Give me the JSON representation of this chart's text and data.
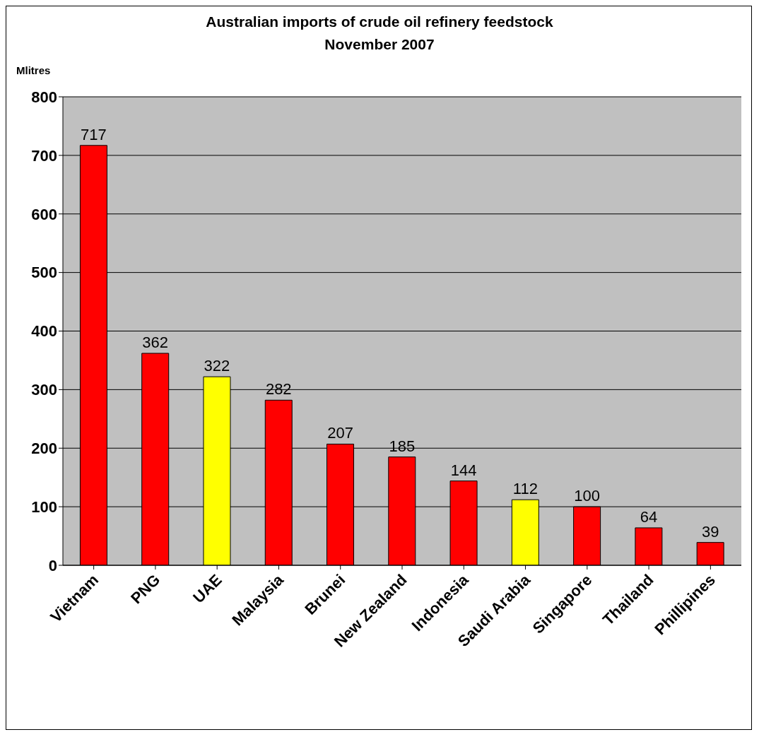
{
  "chart_data": {
    "type": "bar",
    "title": "Australian imports of crude oil refinery feedstock",
    "subtitle": "November 2007",
    "ylabel": "Mlitres",
    "categories": [
      "Vietnam",
      "PNG",
      "UAE",
      "Malaysia",
      "Brunei",
      "New Zealand",
      "Indonesia",
      "Saudi Arabia",
      "Singapore",
      "Thailand",
      "Phillipines"
    ],
    "values": [
      717,
      362,
      322,
      282,
      207,
      185,
      144,
      112,
      100,
      64,
      39
    ],
    "colors": [
      "#ff0000",
      "#ff0000",
      "#ffff00",
      "#ff0000",
      "#ff0000",
      "#ff0000",
      "#ff0000",
      "#ffff00",
      "#ff0000",
      "#ff0000",
      "#ff0000"
    ],
    "ylim": [
      0,
      800
    ],
    "yticks": [
      0,
      100,
      200,
      300,
      400,
      500,
      600,
      700,
      800
    ],
    "grid": "y",
    "data_labels": true
  }
}
